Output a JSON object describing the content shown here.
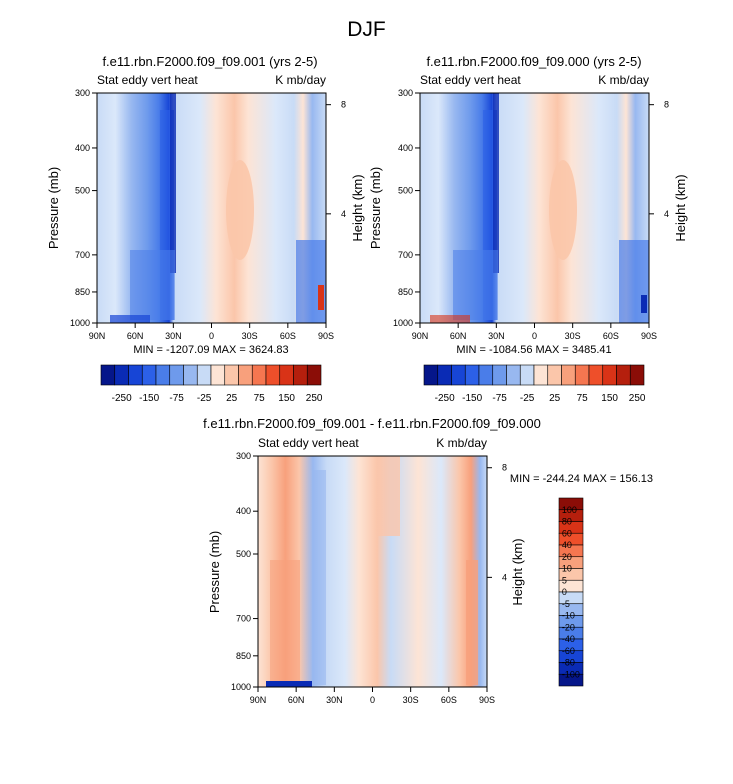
{
  "page_title": "DJF",
  "chart_data": [
    {
      "type": "heatmap",
      "title": "f.e11.rbn.F2000.f09_f09.001 (yrs 2-5)",
      "left_label": "Stat eddy vert heat",
      "right_label": "K mb/day",
      "ylabel": "Pressure (mb)",
      "ylabel_right": "Height (km)",
      "x_ticks": [
        "90N",
        "60N",
        "30N",
        "0",
        "30S",
        "60S",
        "90S"
      ],
      "y_ticks": [
        "300",
        "400",
        "500",
        "700",
        "850",
        "1000"
      ],
      "y_ticks_right": [
        "8",
        "4"
      ],
      "stats": "MIN = -1207.09   MAX = 3624.83",
      "colorbar_labels": [
        "-250",
        "-150",
        "-75",
        "-25",
        "25",
        "75",
        "150",
        "250"
      ],
      "x_range": [
        90,
        -90
      ],
      "y_range_mb": [
        300,
        1000
      ],
      "y_scale": "log",
      "colorbar": "horizontal"
    },
    {
      "type": "heatmap",
      "title": "f.e11.rbn.F2000.f09_f09.000 (yrs 2-5)",
      "left_label": "Stat eddy vert heat",
      "right_label": "K mb/day",
      "ylabel": "Pressure (mb)",
      "ylabel_right": "Height (km)",
      "x_ticks": [
        "90N",
        "60N",
        "30N",
        "0",
        "30S",
        "60S",
        "90S"
      ],
      "y_ticks": [
        "300",
        "400",
        "500",
        "700",
        "850",
        "1000"
      ],
      "y_ticks_right": [
        "8",
        "4"
      ],
      "stats": "MIN = -1084.56   MAX = 3485.41",
      "colorbar_labels": [
        "-250",
        "-150",
        "-75",
        "-25",
        "25",
        "75",
        "150",
        "250"
      ],
      "x_range": [
        90,
        -90
      ],
      "y_range_mb": [
        300,
        1000
      ],
      "y_scale": "log",
      "colorbar": "horizontal"
    },
    {
      "type": "heatmap",
      "title": "f.e11.rbn.F2000.f09_f09.001 - f.e11.rbn.F2000.f09_f09.000",
      "left_label": "Stat eddy vert heat",
      "right_label": "K mb/day",
      "ylabel": "Pressure (mb)",
      "ylabel_right": "Height (km)",
      "x_ticks": [
        "90N",
        "60N",
        "30N",
        "0",
        "30S",
        "60S",
        "90S"
      ],
      "y_ticks": [
        "300",
        "400",
        "500",
        "700",
        "850",
        "1000"
      ],
      "y_ticks_right": [
        "8",
        "4"
      ],
      "stats": "MIN = -244.24   MAX = 156.13",
      "colorbar_labels": [
        "100",
        "80",
        "60",
        "40",
        "20",
        "10",
        "5",
        "0",
        "-5",
        "-10",
        "-20",
        "-40",
        "-60",
        "-80",
        "-100"
      ],
      "x_range": [
        90,
        -90
      ],
      "y_range_mb": [
        300,
        1000
      ],
      "y_scale": "log",
      "colorbar": "vertical"
    }
  ],
  "colors": {
    "colorbar_16": [
      "#05168a",
      "#0a2bb5",
      "#1745d6",
      "#2c60e8",
      "#4a7de9",
      "#6e9aec",
      "#98b8f0",
      "#c8dbf6",
      "#fde4d5",
      "#fbc6aa",
      "#f8a07c",
      "#f57650",
      "#ee4f2a",
      "#d93317",
      "#b51f0d",
      "#8b0d07"
    ],
    "diff_colorbar_16": [
      "#05168a",
      "#0a2bb5",
      "#1745d6",
      "#2c60e8",
      "#4a7de9",
      "#6e9aec",
      "#98b8f0",
      "#c8dbf6",
      "#fde4d5",
      "#fbc6aa",
      "#f8a07c",
      "#f57650",
      "#ee4f2a",
      "#d93317",
      "#b51f0d",
      "#8b0d07"
    ]
  }
}
